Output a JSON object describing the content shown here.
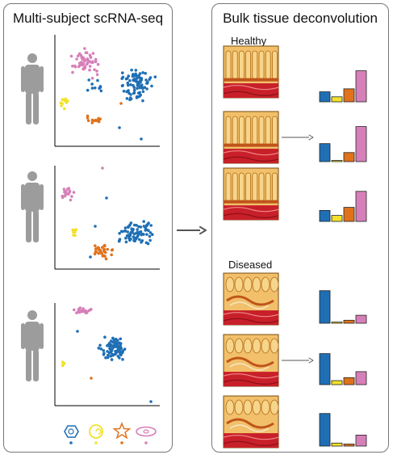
{
  "left_panel": {
    "title": "Multi-subject scRNA-seq"
  },
  "right_panel": {
    "title": "Bulk tissue deconvolution",
    "groups": [
      {
        "label": "Healthy",
        "samples": [
          {
            "proportions": [
              0.2,
              0.1,
              0.26,
              0.62
            ]
          },
          {
            "proportions": [
              0.36,
              0.02,
              0.18,
              0.7
            ]
          },
          {
            "proportions": [
              0.22,
              0.12,
              0.28,
              0.6
            ]
          }
        ]
      },
      {
        "label": "Diseased",
        "samples": [
          {
            "proportions": [
              0.65,
              0.02,
              0.06,
              0.16
            ]
          },
          {
            "proportions": [
              0.62,
              0.08,
              0.14,
              0.26
            ]
          },
          {
            "proportions": [
              0.65,
              0.06,
              0.04,
              0.22
            ]
          }
        ]
      }
    ]
  },
  "cell_types": [
    {
      "name": "round-cell",
      "color": "#1f6fb5"
    },
    {
      "name": "spiral-cell",
      "color": "#f2e12b"
    },
    {
      "name": "star-cell",
      "color": "#e0721b"
    },
    {
      "name": "elongated-cell",
      "color": "#d77fb8"
    }
  ],
  "colors": {
    "blue": "#1f6fb5",
    "yellow": "#f2e12b",
    "orange": "#e0721b",
    "pink": "#d77fb8",
    "silhouette": "#9c9c9c",
    "arrow": "#555555"
  },
  "icons": {
    "subject": "human-silhouette-icon",
    "flow": "right-arrow-icon",
    "tissue": "tissue-histology-icon"
  }
}
